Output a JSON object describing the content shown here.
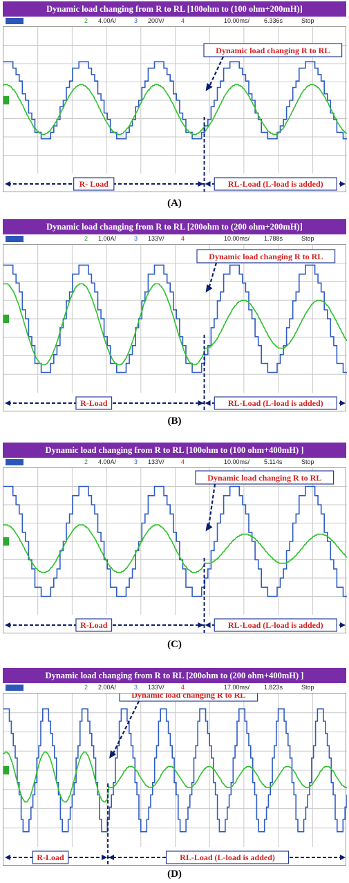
{
  "colors": {
    "title_bg": "#7a2ca8",
    "trace_voltage": "#2f5cc4",
    "trace_current": "#2fc02f",
    "annotation_arrow": "#0a1e6e",
    "annotation_text": "#d42020",
    "grid": "#c8c8c8"
  },
  "chart_data": [
    {
      "type": "line",
      "title": "Dynamic load changing from R to RL [100ohm to (100 ohm+200mH)]",
      "caption": "(A)",
      "status": {
        "ch2": "2",
        "ch2_scale": "4.00A/",
        "ch3": "3",
        "ch3_scale": "200V/",
        "ch4": "4",
        "timebase": "10.00ms/",
        "position": "6.336s",
        "mode": "Stop"
      },
      "callout": "Dynamic load changing R to RL",
      "left_label": "R- Load",
      "right_label": "RL-Load (L-load is added)",
      "switch_cycle": 2.66,
      "series": [
        {
          "channel": "voltage",
          "cycles": 4.55,
          "phase": 0.22,
          "amp_div": 2.1,
          "offset_div": 0,
          "steps": 12
        },
        {
          "channel": "current",
          "cycles": 4.55,
          "phase": 0.22,
          "amp_div": 1.35,
          "amp_after_div": 1.35,
          "phase_lag_after": 0.06,
          "offset_div": 0.5
        }
      ]
    },
    {
      "type": "line",
      "title": "Dynamic load changing from R to RL [200ohm to (200 ohm+200mH)]",
      "caption": "(B)",
      "status": {
        "ch2": "2",
        "ch2_scale": "1.00A/",
        "ch3": "3",
        "ch3_scale": "133V/",
        "ch4": "4",
        "timebase": "10.00ms/",
        "position": "1.788s",
        "mode": "Stop"
      },
      "callout": "Dynamic load changing R to RL",
      "left_label": "R-Load",
      "right_label": "RL-Load (L-load is added)",
      "switch_cycle": 2.66,
      "series": [
        {
          "channel": "voltage",
          "cycles": 4.55,
          "phase": 0.22,
          "amp_div": 2.9,
          "offset_div": 0,
          "steps": 12
        },
        {
          "channel": "current",
          "cycles": 4.55,
          "phase": 0.22,
          "amp_div": 2.2,
          "amp_after_div": 1.3,
          "phase_lag_after": 0.15,
          "offset_div": 0.3
        }
      ]
    },
    {
      "type": "line",
      "title": "Dynamic load changing from R to RL [100ohm to (100 ohm+400mH) ]",
      "caption": "(C)",
      "status": {
        "ch2": "2",
        "ch2_scale": "4.00A/",
        "ch3": "3",
        "ch3_scale": "133V/",
        "ch4": "4",
        "timebase": "10.00ms/",
        "position": "5.114s",
        "mode": "Stop"
      },
      "callout": "Dynamic load changing R to RL",
      "left_label": "R-Load",
      "right_label": "RL-Load (L-load is added)",
      "switch_cycle": 2.66,
      "series": [
        {
          "channel": "voltage",
          "cycles": 4.55,
          "phase": 0.22,
          "amp_div": 3.0,
          "offset_div": 0,
          "steps": 12
        },
        {
          "channel": "current",
          "cycles": 4.55,
          "phase": 0.22,
          "amp_div": 1.3,
          "amp_after_div": 0.8,
          "phase_lag_after": 0.17,
          "offset_div": 0.4
        }
      ]
    },
    {
      "type": "line",
      "title": "Dynamic load changing from R to RL [200ohm to (200 ohm+400mH) ]",
      "caption": "(D)",
      "status": {
        "ch2": "2",
        "ch2_scale": "2.00A/",
        "ch3": "3",
        "ch3_scale": "133V/",
        "ch4": "4",
        "timebase": "17.00ms/",
        "position": "1.823s",
        "mode": "Stop"
      },
      "callout": "Dynamic load changing R to RL",
      "left_label": "R-Load",
      "right_label": "RL-Load (L-load is added)",
      "switch_cycle": 2.66,
      "series": [
        {
          "channel": "voltage",
          "cycles": 8.75,
          "phase": 0.18,
          "amp_div": 3.2,
          "offset_div": 0,
          "steps": 10
        },
        {
          "channel": "current",
          "cycles": 8.75,
          "phase": 0.18,
          "amp_div": 1.3,
          "amp_after_div": 0.55,
          "phase_lag_after": 0.17,
          "offset_div": 0.35
        }
      ]
    }
  ]
}
